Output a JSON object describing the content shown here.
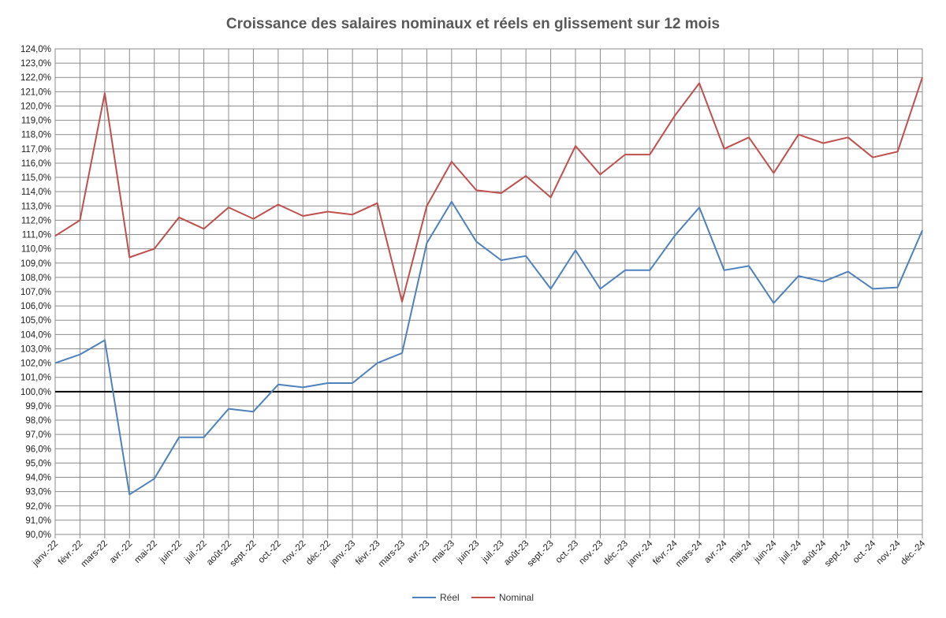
{
  "chart_data": {
    "type": "line",
    "title": "Croissance des salaires nominaux et réels en glissement sur 12 mois",
    "xlabel": "",
    "ylabel": "",
    "ylim": [
      90,
      124
    ],
    "ytick_step": 1,
    "ytick_suffix": ",0%",
    "reference_line": 100,
    "grid": true,
    "legend_position": "bottom",
    "categories": [
      "janv.-22",
      "févr.-22",
      "mars-22",
      "avr.-22",
      "mai-22",
      "juin-22",
      "juil.-22",
      "août-22",
      "sept.-22",
      "oct.-22",
      "nov.-22",
      "déc.-22",
      "janv.-23",
      "févr.-23",
      "mars-23",
      "avr.-23",
      "mai-23",
      "juin-23",
      "juil.-23",
      "août-23",
      "sept.-23",
      "oct.-23",
      "nov.-23",
      "déc.-23",
      "janv.-24",
      "févr.-24",
      "mars-24",
      "avr.-24",
      "mai-24",
      "juin-24",
      "juil.-24",
      "août-24",
      "sept.-24",
      "oct.-24",
      "nov.-24",
      "déc.-24"
    ],
    "series": [
      {
        "name": "Réel",
        "color": "#4f81bd",
        "values": [
          102.0,
          102.6,
          103.6,
          92.8,
          93.9,
          96.8,
          96.8,
          98.8,
          98.6,
          100.5,
          100.3,
          100.6,
          100.6,
          102.0,
          102.7,
          110.4,
          113.3,
          110.5,
          109.2,
          109.5,
          107.2,
          109.9,
          107.2,
          108.5,
          108.5,
          110.9,
          112.9,
          108.5,
          108.8,
          106.2,
          108.1,
          107.7,
          108.4,
          107.2,
          107.3,
          111.3
        ]
      },
      {
        "name": "Nominal",
        "color": "#c0504d",
        "values": [
          110.9,
          112.0,
          120.9,
          109.4,
          110.0,
          112.2,
          111.4,
          112.9,
          112.1,
          113.1,
          112.3,
          112.6,
          112.4,
          113.2,
          106.3,
          113.0,
          116.1,
          114.1,
          113.9,
          115.1,
          113.6,
          117.2,
          115.2,
          116.6,
          116.6,
          119.3,
          121.6,
          117.0,
          117.8,
          115.3,
          118.0,
          117.4,
          117.8,
          116.4,
          116.8,
          122.0
        ]
      }
    ]
  }
}
